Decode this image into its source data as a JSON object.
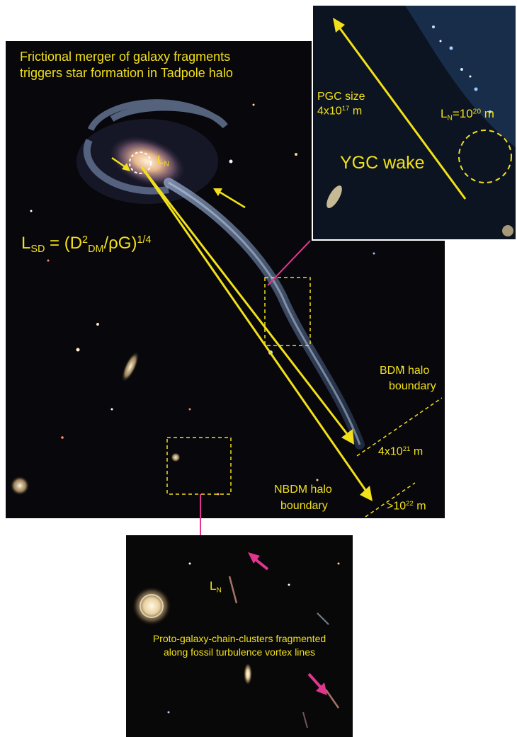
{
  "title_lines": [
    "Frictional merger of galaxy fragments",
    "triggers star formation in Tadpole halo"
  ],
  "equation": {
    "lhs": "L",
    "lhs_sub": "SD",
    "eq": " = (D",
    "exp2": "2",
    "sub_dm": "DM",
    "rest": "/ρG)",
    "exp_q": "1/4"
  },
  "labels": {
    "ln_main": {
      "base": "L",
      "sub": "N"
    },
    "bdm_boundary": [
      "BDM halo",
      "boundary"
    ],
    "bdm_size": {
      "base": "4x10",
      "exp": "21",
      "unit": " m"
    },
    "nbdm_boundary": [
      "NBDM halo",
      "boundary"
    ],
    "nbdm_size": {
      "base": ">10",
      "exp": "22",
      "unit": " m"
    }
  },
  "inset_top": {
    "pgc_size": {
      "line1": "PGC size",
      "base": "4x10",
      "exp": "17",
      "unit": " m"
    },
    "ln": {
      "base": "L",
      "sub": "N",
      "eq": "=10",
      "exp": "20",
      "unit": " m"
    },
    "ygc": "YGC wake"
  },
  "inset_bottom": {
    "ln": {
      "base": "L",
      "sub": "N"
    },
    "caption_lines": [
      "Proto-galaxy-chain-clusters fragmented",
      "along fossil turbulence vortex lines"
    ]
  },
  "colors": {
    "annotation": "#f2e01a",
    "connector": "#e0368f",
    "background_space": "#07070c"
  }
}
